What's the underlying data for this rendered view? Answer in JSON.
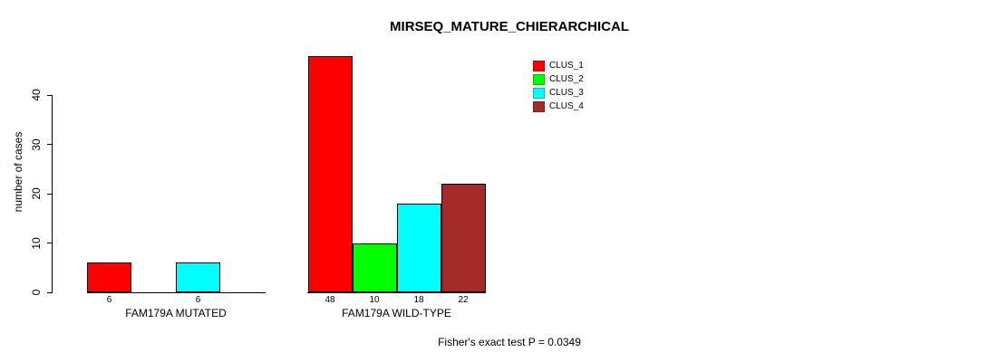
{
  "window": {
    "background": "#FFFFFF",
    "axis_color": "#000000",
    "text_color": "#000000"
  },
  "chart_data": {
    "type": "bar",
    "title": "MIRSEQ_MATURE_CHIERARCHICAL",
    "xlabel": "",
    "ylabel": "number of cases",
    "yticks": [
      0,
      10,
      20,
      30,
      40
    ],
    "ylim": [
      0,
      48
    ],
    "grid": false,
    "series": [
      {
        "name": "CLUS_1",
        "color": "#FF0000"
      },
      {
        "name": "CLUS_2",
        "color": "#00FF00"
      },
      {
        "name": "CLUS_3",
        "color": "#00FFFF"
      },
      {
        "name": "CLUS_4",
        "color": "#A52A2A"
      }
    ],
    "groups": [
      {
        "label": "FAM179A MUTATED",
        "values": [
          6,
          0,
          6,
          0
        ],
        "bar_labels": [
          "6",
          "",
          "6",
          ""
        ]
      },
      {
        "label": "FAM179A WILD-TYPE",
        "values": [
          48,
          10,
          18,
          22
        ],
        "bar_labels": [
          "48",
          "10",
          "18",
          "22"
        ]
      }
    ],
    "legend": {
      "position": "top-right",
      "entries": [
        "CLUS_1",
        "CLUS_2",
        "CLUS_3",
        "CLUS_4"
      ]
    },
    "annotation": "Fisher's exact test P = 0.0349"
  }
}
